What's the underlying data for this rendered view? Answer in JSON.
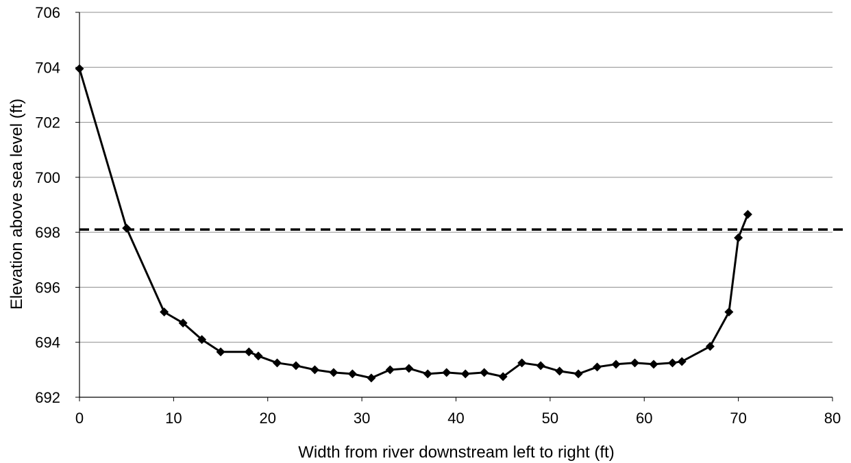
{
  "chart_data": {
    "type": "line",
    "title": "",
    "xlabel": "Width from river downstream left to right (ft)",
    "ylabel": "Elevation above sea level (ft)",
    "xlim": [
      0,
      80
    ],
    "ylim": [
      692,
      706
    ],
    "xticks": [
      0,
      10,
      20,
      30,
      40,
      50,
      60,
      70,
      80
    ],
    "yticks": [
      692,
      694,
      696,
      698,
      700,
      702,
      704,
      706
    ],
    "grid": "horizontal",
    "legend": "none",
    "series": [
      {
        "marker": "diamond",
        "color": "#000000",
        "x": [
          0,
          5,
          9,
          11,
          13,
          15,
          18,
          19,
          21,
          23,
          25,
          27,
          29,
          31,
          33,
          35,
          37,
          39,
          41,
          43,
          45,
          47,
          49,
          51,
          53,
          55,
          57,
          59,
          61,
          63,
          64,
          67,
          69,
          70,
          71
        ],
        "y": [
          703.95,
          698.15,
          695.1,
          694.7,
          694.1,
          693.65,
          693.65,
          693.5,
          693.25,
          693.15,
          693.0,
          692.9,
          692.85,
          692.7,
          693.0,
          693.05,
          692.85,
          692.9,
          692.85,
          692.9,
          692.75,
          693.25,
          693.15,
          692.95,
          692.85,
          693.1,
          693.2,
          693.25,
          693.2,
          693.25,
          693.3,
          693.85,
          695.1,
          697.8,
          698.65
        ]
      }
    ],
    "reference_lines": [
      {
        "orientation": "horizontal",
        "y": 698.1,
        "style": "dashed",
        "color": "#000000"
      }
    ]
  }
}
